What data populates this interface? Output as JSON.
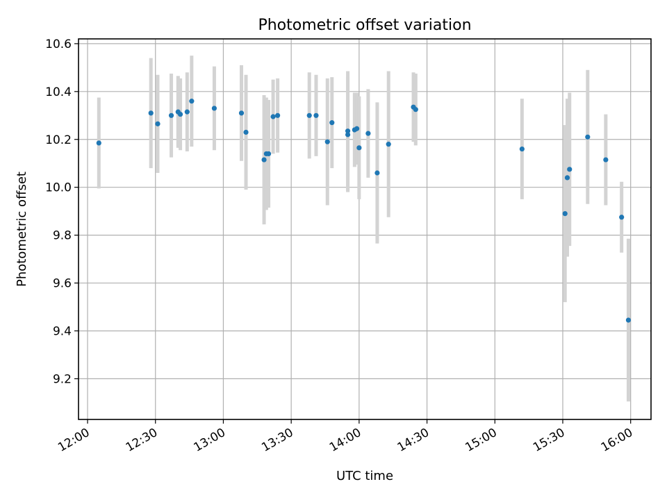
{
  "chart_data": {
    "type": "scatter",
    "title": "Photometric offset variation",
    "xlabel": "UTC time",
    "ylabel": "Photometric offset",
    "grid": true,
    "xlim": [
      "11:56",
      "16:09"
    ],
    "ylim": [
      9.03,
      10.62
    ],
    "x_ticks": [
      "12:00",
      "12:30",
      "13:00",
      "13:30",
      "14:00",
      "14:30",
      "15:00",
      "15:30",
      "16:00"
    ],
    "y_ticks": [
      9.2,
      9.4,
      9.6,
      9.8,
      10.0,
      10.2,
      10.4,
      10.6
    ],
    "y_tick_labels": [
      "9.2",
      "9.4",
      "9.6",
      "9.8",
      "10.0",
      "10.2",
      "10.4",
      "10.6"
    ],
    "marker_color": "#1f77b4",
    "errorbar_color": "#d3d3d3",
    "points": [
      {
        "x": "12:05",
        "y": 10.185,
        "err": 0.19
      },
      {
        "x": "12:28",
        "y": 10.31,
        "err": 0.23
      },
      {
        "x": "12:31",
        "y": 10.265,
        "err": 0.205
      },
      {
        "x": "12:37",
        "y": 10.3,
        "err": 0.175
      },
      {
        "x": "12:40",
        "y": 10.315,
        "err": 0.15
      },
      {
        "x": "12:41",
        "y": 10.305,
        "err": 0.15
      },
      {
        "x": "12:44",
        "y": 10.315,
        "err": 0.165
      },
      {
        "x": "12:46",
        "y": 10.36,
        "err": 0.19
      },
      {
        "x": "12:56",
        "y": 10.33,
        "err": 0.175
      },
      {
        "x": "13:08",
        "y": 10.31,
        "err": 0.2
      },
      {
        "x": "13:10",
        "y": 10.23,
        "err": 0.24
      },
      {
        "x": "13:18",
        "y": 10.115,
        "err": 0.27
      },
      {
        "x": "13:19",
        "y": 10.14,
        "err": 0.235
      },
      {
        "x": "13:20",
        "y": 10.14,
        "err": 0.225
      },
      {
        "x": "13:22",
        "y": 10.295,
        "err": 0.155
      },
      {
        "x": "13:24",
        "y": 10.3,
        "err": 0.155
      },
      {
        "x": "13:38",
        "y": 10.3,
        "err": 0.18
      },
      {
        "x": "13:41",
        "y": 10.3,
        "err": 0.17
      },
      {
        "x": "13:46",
        "y": 10.19,
        "err": 0.265
      },
      {
        "x": "13:48",
        "y": 10.27,
        "err": 0.19
      },
      {
        "x": "13:55",
        "y": 10.22,
        "err": 0.24
      },
      {
        "x": "13:55",
        "y": 10.235,
        "err": 0.25
      },
      {
        "x": "13:58",
        "y": 10.24,
        "err": 0.155
      },
      {
        "x": "13:59",
        "y": 10.245,
        "err": 0.15
      },
      {
        "x": "14:00",
        "y": 10.165,
        "err": 0.215
      },
      {
        "x": "14:04",
        "y": 10.225,
        "err": 0.185
      },
      {
        "x": "14:08",
        "y": 10.06,
        "err": 0.295
      },
      {
        "x": "14:13",
        "y": 10.18,
        "err": 0.305
      },
      {
        "x": "14:24",
        "y": 10.335,
        "err": 0.145
      },
      {
        "x": "14:25",
        "y": 10.325,
        "err": 0.15
      },
      {
        "x": "15:12",
        "y": 10.16,
        "err": 0.21
      },
      {
        "x": "15:31",
        "y": 9.89,
        "err": 0.37
      },
      {
        "x": "15:32",
        "y": 10.04,
        "err": 0.33
      },
      {
        "x": "15:33",
        "y": 10.075,
        "err": 0.32
      },
      {
        "x": "15:41",
        "y": 10.21,
        "err": 0.28
      },
      {
        "x": "15:49",
        "y": 10.115,
        "err": 0.19
      },
      {
        "x": "15:56",
        "y": 9.875,
        "err": 0.148
      },
      {
        "x": "15:59",
        "y": 9.445,
        "err": 0.34
      }
    ]
  }
}
